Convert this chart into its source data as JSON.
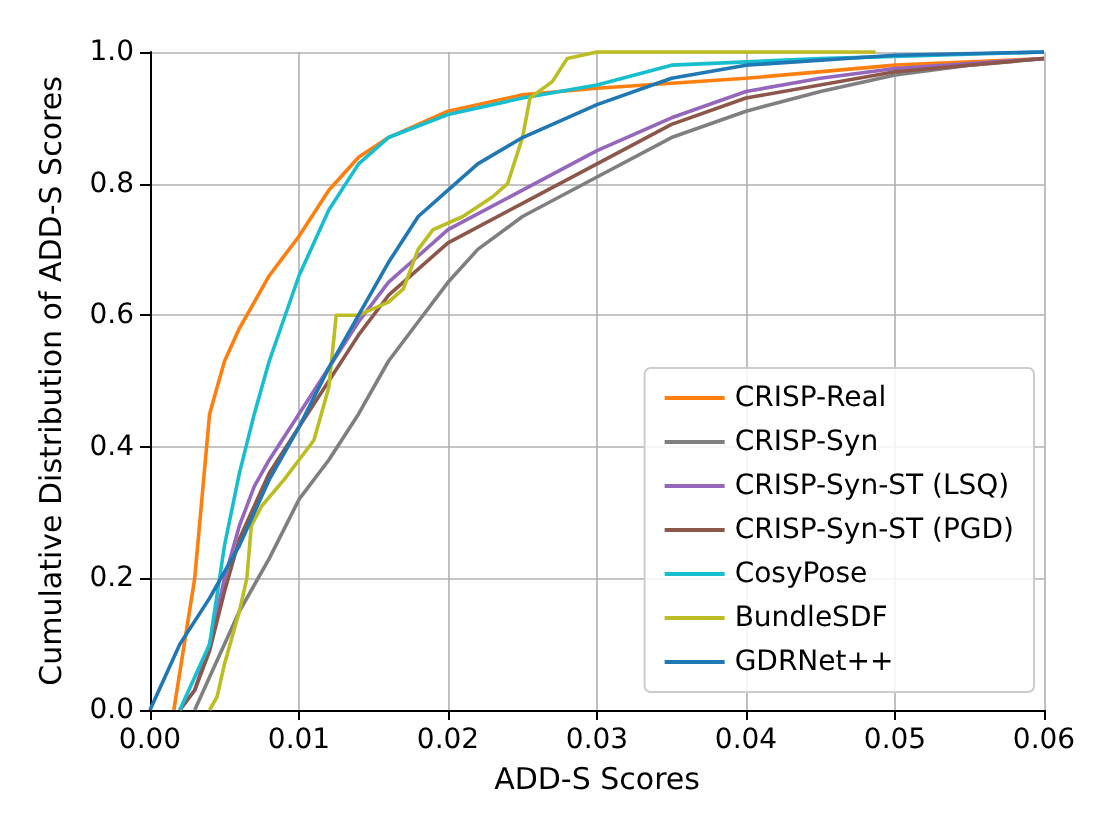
{
  "chart_data": {
    "type": "line",
    "xlabel": "ADD-S Scores",
    "ylabel": "Cumulative Distribution of ADD-S Scores",
    "xlim": [
      0,
      0.06
    ],
    "xticks": [
      {
        "value": 0,
        "label": "0.00"
      },
      0.01,
      0.02,
      0.03,
      0.04,
      0.05,
      0.06
    ],
    "ylim": [
      0,
      1
    ],
    "yticks": [
      {
        "value": 0,
        "label": "0.0"
      },
      0.2,
      0.4,
      0.6,
      0.8,
      {
        "value": 1,
        "label": "1.0"
      }
    ],
    "grid": true,
    "legend": "bottom right",
    "series": [
      {
        "name": "CRISP-Real",
        "color": "#ff7f0e",
        "x": [
          0.0016,
          0.003,
          0.004,
          0.005,
          0.006,
          0.007,
          0.008,
          0.01,
          0.012,
          0.014,
          0.016,
          0.02,
          0.025,
          0.03,
          0.04,
          0.05,
          0.06
        ],
        "values": [
          0,
          0.2,
          0.45,
          0.53,
          0.58,
          0.62,
          0.66,
          0.72,
          0.79,
          0.84,
          0.87,
          0.91,
          0.935,
          0.945,
          0.96,
          0.98,
          0.99
        ]
      },
      {
        "name": "CRISP-Syn",
        "color": "#7f7f7f",
        "x": [
          0.003,
          0.004,
          0.006,
          0.008,
          0.01,
          0.012,
          0.014,
          0.016,
          0.018,
          0.02,
          0.022,
          0.025,
          0.03,
          0.035,
          0.04,
          0.045,
          0.05,
          0.055,
          0.06
        ],
        "values": [
          0,
          0.05,
          0.15,
          0.23,
          0.32,
          0.38,
          0.45,
          0.53,
          0.59,
          0.65,
          0.7,
          0.75,
          0.81,
          0.87,
          0.91,
          0.94,
          0.965,
          0.98,
          0.99
        ]
      },
      {
        "name": "CRISP-Syn-ST (LSQ)",
        "color": "#9467bd",
        "x": [
          0.002,
          0.003,
          0.004,
          0.005,
          0.006,
          0.007,
          0.008,
          0.01,
          0.012,
          0.014,
          0.016,
          0.018,
          0.02,
          0.025,
          0.03,
          0.035,
          0.04,
          0.045,
          0.05,
          0.06
        ],
        "values": [
          0,
          0.03,
          0.1,
          0.2,
          0.28,
          0.34,
          0.38,
          0.45,
          0.52,
          0.59,
          0.65,
          0.69,
          0.73,
          0.79,
          0.85,
          0.9,
          0.94,
          0.96,
          0.975,
          0.99
        ]
      },
      {
        "name": "CRISP-Syn-ST (PGD)",
        "color": "#8c564b",
        "x": [
          0.002,
          0.003,
          0.004,
          0.005,
          0.006,
          0.008,
          0.01,
          0.012,
          0.014,
          0.016,
          0.018,
          0.02,
          0.025,
          0.03,
          0.035,
          0.04,
          0.05,
          0.06
        ],
        "values": [
          0,
          0.03,
          0.09,
          0.18,
          0.26,
          0.36,
          0.43,
          0.5,
          0.57,
          0.63,
          0.67,
          0.71,
          0.77,
          0.83,
          0.89,
          0.93,
          0.97,
          0.99
        ]
      },
      {
        "name": "CosyPose",
        "color": "#17becf",
        "x": [
          0.002,
          0.004,
          0.005,
          0.006,
          0.007,
          0.008,
          0.01,
          0.012,
          0.014,
          0.016,
          0.02,
          0.025,
          0.03,
          0.035,
          0.045,
          0.06
        ],
        "values": [
          0,
          0.1,
          0.25,
          0.36,
          0.45,
          0.53,
          0.66,
          0.76,
          0.83,
          0.87,
          0.905,
          0.93,
          0.95,
          0.98,
          0.99,
          1
        ]
      },
      {
        "name": "BundleSDF",
        "color": "#bcbd22",
        "x": [
          0.004,
          0.0045,
          0.005,
          0.006,
          0.0065,
          0.0068,
          0.0075,
          0.009,
          0.01,
          0.011,
          0.012,
          0.0125,
          0.014,
          0.016,
          0.017,
          0.018,
          0.019,
          0.021,
          0.023,
          0.024,
          0.025,
          0.0255,
          0.027,
          0.028,
          0.03,
          0.0487
        ],
        "values": [
          0,
          0.02,
          0.07,
          0.15,
          0.2,
          0.28,
          0.31,
          0.35,
          0.38,
          0.41,
          0.49,
          0.6,
          0.6,
          0.62,
          0.64,
          0.7,
          0.73,
          0.75,
          0.78,
          0.8,
          0.87,
          0.93,
          0.955,
          0.99,
          1,
          1
        ]
      },
      {
        "name": "GDRNet++",
        "color": "#1f77b4",
        "x": [
          0,
          0.002,
          0.004,
          0.006,
          0.008,
          0.01,
          0.012,
          0.014,
          0.016,
          0.018,
          0.02,
          0.022,
          0.025,
          0.03,
          0.035,
          0.04,
          0.05,
          0.06
        ],
        "values": [
          0,
          0.1,
          0.17,
          0.25,
          0.35,
          0.43,
          0.52,
          0.6,
          0.68,
          0.75,
          0.79,
          0.83,
          0.87,
          0.92,
          0.96,
          0.98,
          0.995,
          1
        ]
      }
    ]
  }
}
